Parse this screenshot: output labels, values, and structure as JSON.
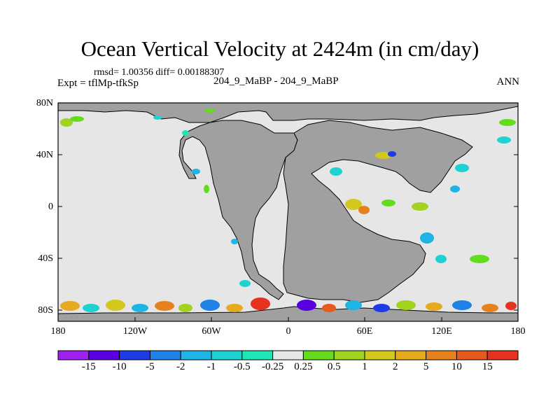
{
  "title": "Ocean Vertical Velocity at 2424m (in cm/day)",
  "stats_line": "rmsd= 1.00356 diff= 0.00188307",
  "experiment_line": "Expt = tflMp-tfkSp",
  "case_line": "204_9_MaBP - 204_9_MaBP",
  "season": "ANN",
  "map": {
    "lat_ticks": [
      "80N",
      "40N",
      "0",
      "40S",
      "80S"
    ],
    "lon_ticks": [
      "180",
      "120W",
      "60W",
      "0",
      "60E",
      "120E",
      "180"
    ],
    "land_color": "#a0a0a0",
    "ocean_neutral_color": "#e6e6e6"
  },
  "colorbar": {
    "labels": [
      "-15",
      "-10",
      "-5",
      "-2",
      "-1",
      "-0.5",
      "-0.25",
      "0.25",
      "0.5",
      "1",
      "2",
      "5",
      "10",
      "15"
    ],
    "colors": [
      "#a020f0",
      "#5a00e0",
      "#1e3ce6",
      "#1e82e6",
      "#1eb4e6",
      "#1ed2d2",
      "#1ee6b4",
      "#e6e6e6",
      "#64dc1e",
      "#a0d21e",
      "#d2c81e",
      "#e6aa1e",
      "#e6821e",
      "#e65a1e",
      "#e6321e"
    ]
  }
}
